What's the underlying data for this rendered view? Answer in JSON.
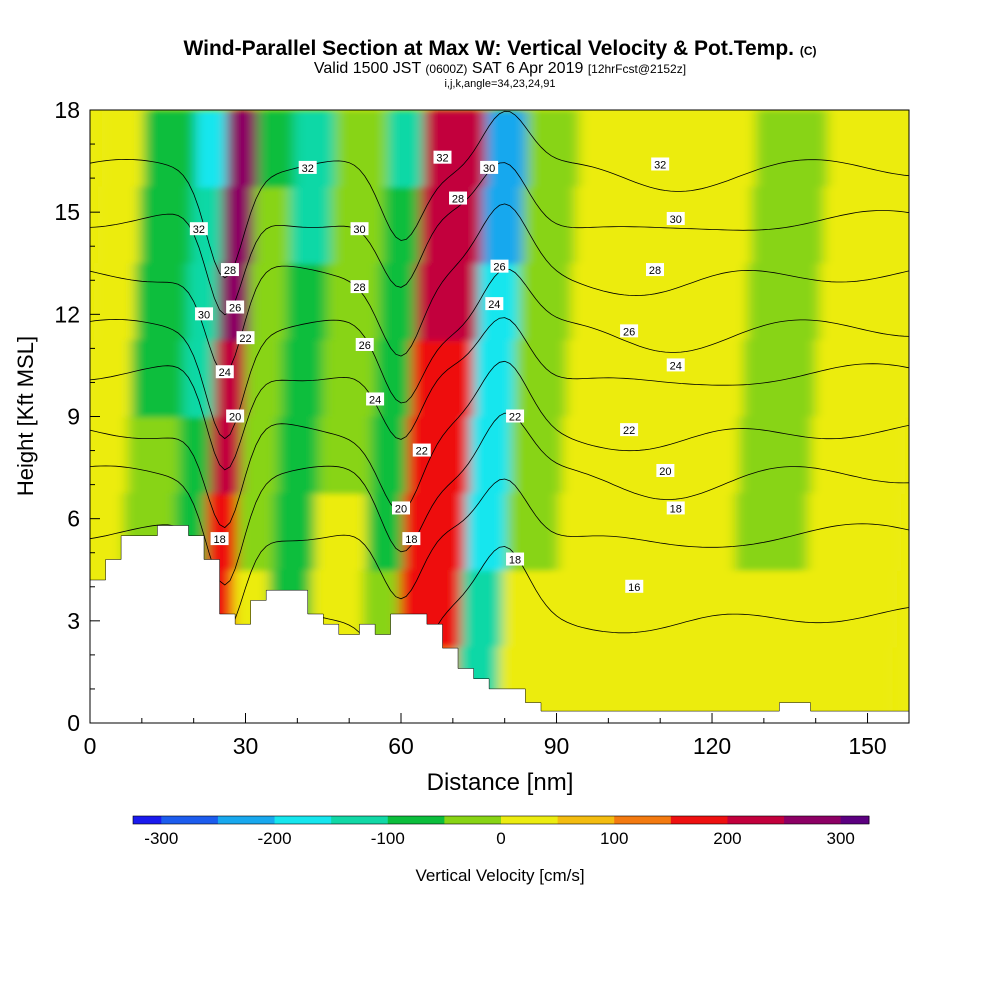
{
  "title": {
    "main": "Wind-Parallel Section at Max W: Vertical Velocity & Pot.Temp.",
    "copyright": "(C)",
    "valid_prefix": "Valid 1500 JST",
    "valid_utc": "(0600Z)",
    "valid_date": "SAT 6 Apr 2019",
    "forecast": "[12hrFcst@2152z]",
    "indices": "i,j,k,angle=34,23,24,91"
  },
  "colors": {
    "neg300": "#1a1aee",
    "neg250": "#1c5cee",
    "neg200": "#18a8ee",
    "neg175": "#16e6ee",
    "neg125": "#11d8a6",
    "neg75": "#0cbe3c",
    "neg25": "#88d414",
    "pos25": "#ecec10",
    "pos75": "#f3bc10",
    "pos125": "#f37a10",
    "pos175": "#ee1010",
    "pos225": "#c2003c",
    "pos275": "#8c0064",
    "pos325": "#5c0080",
    "terrain": "#ffffff"
  },
  "chart_data": {
    "type": "heatmap",
    "xlabel": "Distance [nm]",
    "ylabel": "Height [Kft MSL]",
    "xlim": [
      0,
      158
    ],
    "ylim": [
      0,
      18
    ],
    "x_ticks": [
      0,
      30,
      60,
      90,
      120,
      150
    ],
    "y_ticks": [
      0,
      3,
      6,
      9,
      12,
      15,
      18
    ],
    "colorbar": {
      "label": "Vertical Velocity [cm/s]",
      "ticks": [
        -300,
        -200,
        -100,
        0,
        100,
        200,
        300
      ],
      "min": -325,
      "max": 325,
      "step": 25,
      "stops": [
        [
          -325,
          "#1a1aee"
        ],
        [
          -275,
          "#1c5cee"
        ],
        [
          -225,
          "#18a8ee"
        ],
        [
          -175,
          "#16e6ee"
        ],
        [
          -125,
          "#11d8a6"
        ],
        [
          -75,
          "#0cbe3c"
        ],
        [
          -25,
          "#88d414"
        ],
        [
          25,
          "#ecec10"
        ],
        [
          75,
          "#f3bc10"
        ],
        [
          125,
          "#f37a10"
        ],
        [
          175,
          "#ee1010"
        ],
        [
          225,
          "#c2003c"
        ],
        [
          275,
          "#8c0064"
        ],
        [
          325,
          "#5c0080"
        ]
      ]
    },
    "vertical_velocity_cells": [
      {
        "x": [
          0,
          8
        ],
        "base": 50,
        "mid": 10
      },
      {
        "x": [
          8,
          18
        ],
        "base": -80,
        "mid": -20
      },
      {
        "x": [
          18,
          24
        ],
        "base": -150,
        "mid": -60
      },
      {
        "x": [
          24,
          30
        ],
        "base": 300,
        "mid": 160
      },
      {
        "x": [
          30,
          37
        ],
        "base": -60,
        "mid": 20
      },
      {
        "x": [
          37,
          45
        ],
        "base": -110,
        "mid": -40
      },
      {
        "x": [
          45,
          55
        ],
        "base": -20,
        "mid": 10
      },
      {
        "x": [
          55,
          62
        ],
        "base": -100,
        "mid": -30
      },
      {
        "x": [
          62,
          74
        ],
        "base": 240,
        "mid": 140
      },
      {
        "x": [
          74,
          82
        ],
        "base": -230,
        "mid": -120
      },
      {
        "x": [
          82,
          92
        ],
        "base": -40,
        "mid": 10
      },
      {
        "x": [
          92,
          102
        ],
        "base": 20,
        "mid": 15
      },
      {
        "x": [
          102,
          126
        ],
        "base": 5,
        "mid": 5
      },
      {
        "x": [
          126,
          140
        ],
        "base": -20,
        "mid": 5
      },
      {
        "x": [
          140,
          158
        ],
        "base": 30,
        "mid": 40
      }
    ],
    "potential_temperature_contours": {
      "levels": [
        16,
        18,
        20,
        22,
        24,
        26,
        28,
        30,
        32
      ],
      "labels": [
        {
          "text": "16",
          "x": 105,
          "y": 4.0
        },
        {
          "text": "18",
          "x": 25,
          "y": 5.4
        },
        {
          "text": "18",
          "x": 62,
          "y": 5.4
        },
        {
          "text": "18",
          "x": 82,
          "y": 4.8
        },
        {
          "text": "18",
          "x": 113,
          "y": 6.3
        },
        {
          "text": "20",
          "x": 28,
          "y": 9.0
        },
        {
          "text": "20",
          "x": 60,
          "y": 6.3
        },
        {
          "text": "20",
          "x": 111,
          "y": 7.4
        },
        {
          "text": "22",
          "x": 30,
          "y": 11.3
        },
        {
          "text": "22",
          "x": 64,
          "y": 8.0
        },
        {
          "text": "22",
          "x": 82,
          "y": 9.0
        },
        {
          "text": "22",
          "x": 104,
          "y": 8.6
        },
        {
          "text": "24",
          "x": 26,
          "y": 10.3
        },
        {
          "text": "24",
          "x": 55,
          "y": 9.5
        },
        {
          "text": "24",
          "x": 78,
          "y": 12.3
        },
        {
          "text": "24",
          "x": 113,
          "y": 10.5
        },
        {
          "text": "26",
          "x": 28,
          "y": 12.2
        },
        {
          "text": "26",
          "x": 53,
          "y": 11.1
        },
        {
          "text": "26",
          "x": 79,
          "y": 13.4
        },
        {
          "text": "26",
          "x": 104,
          "y": 11.5
        },
        {
          "text": "28",
          "x": 27,
          "y": 13.3
        },
        {
          "text": "28",
          "x": 52,
          "y": 12.8
        },
        {
          "text": "28",
          "x": 71,
          "y": 15.4
        },
        {
          "text": "28",
          "x": 109,
          "y": 13.3
        },
        {
          "text": "30",
          "x": 22,
          "y": 12.0
        },
        {
          "text": "30",
          "x": 52,
          "y": 14.5
        },
        {
          "text": "30",
          "x": 77,
          "y": 16.3
        },
        {
          "text": "30",
          "x": 113,
          "y": 14.8
        },
        {
          "text": "32",
          "x": 21,
          "y": 14.5
        },
        {
          "text": "32",
          "x": 42,
          "y": 16.3
        },
        {
          "text": "32",
          "x": 68,
          "y": 16.6
        },
        {
          "text": "32",
          "x": 110,
          "y": 16.4
        }
      ]
    },
    "terrain_profile": [
      [
        0,
        4.2
      ],
      [
        3,
        4.2
      ],
      [
        3,
        4.8
      ],
      [
        6,
        4.8
      ],
      [
        6,
        5.5
      ],
      [
        13,
        5.5
      ],
      [
        13,
        5.8
      ],
      [
        19,
        5.8
      ],
      [
        19,
        5.5
      ],
      [
        22,
        5.5
      ],
      [
        22,
        4.8
      ],
      [
        25,
        4.8
      ],
      [
        25,
        3.2
      ],
      [
        28,
        3.2
      ],
      [
        28,
        2.9
      ],
      [
        31,
        2.9
      ],
      [
        31,
        3.6
      ],
      [
        34,
        3.6
      ],
      [
        34,
        3.9
      ],
      [
        42,
        3.9
      ],
      [
        42,
        3.2
      ],
      [
        45,
        3.2
      ],
      [
        45,
        2.9
      ],
      [
        48,
        2.9
      ],
      [
        48,
        2.6
      ],
      [
        52,
        2.6
      ],
      [
        52,
        2.9
      ],
      [
        55,
        2.9
      ],
      [
        55,
        2.6
      ],
      [
        58,
        2.6
      ],
      [
        58,
        3.2
      ],
      [
        65,
        3.2
      ],
      [
        65,
        2.9
      ],
      [
        68,
        2.9
      ],
      [
        68,
        2.2
      ],
      [
        71,
        2.2
      ],
      [
        71,
        1.6
      ],
      [
        74,
        1.6
      ],
      [
        74,
        1.3
      ],
      [
        77,
        1.3
      ],
      [
        77,
        1.0
      ],
      [
        84,
        1.0
      ],
      [
        84,
        0.6
      ],
      [
        87,
        0.6
      ],
      [
        87,
        0.35
      ],
      [
        133,
        0.35
      ],
      [
        133,
        0.6
      ],
      [
        139,
        0.6
      ],
      [
        139,
        0.35
      ],
      [
        158,
        0.35
      ]
    ]
  }
}
